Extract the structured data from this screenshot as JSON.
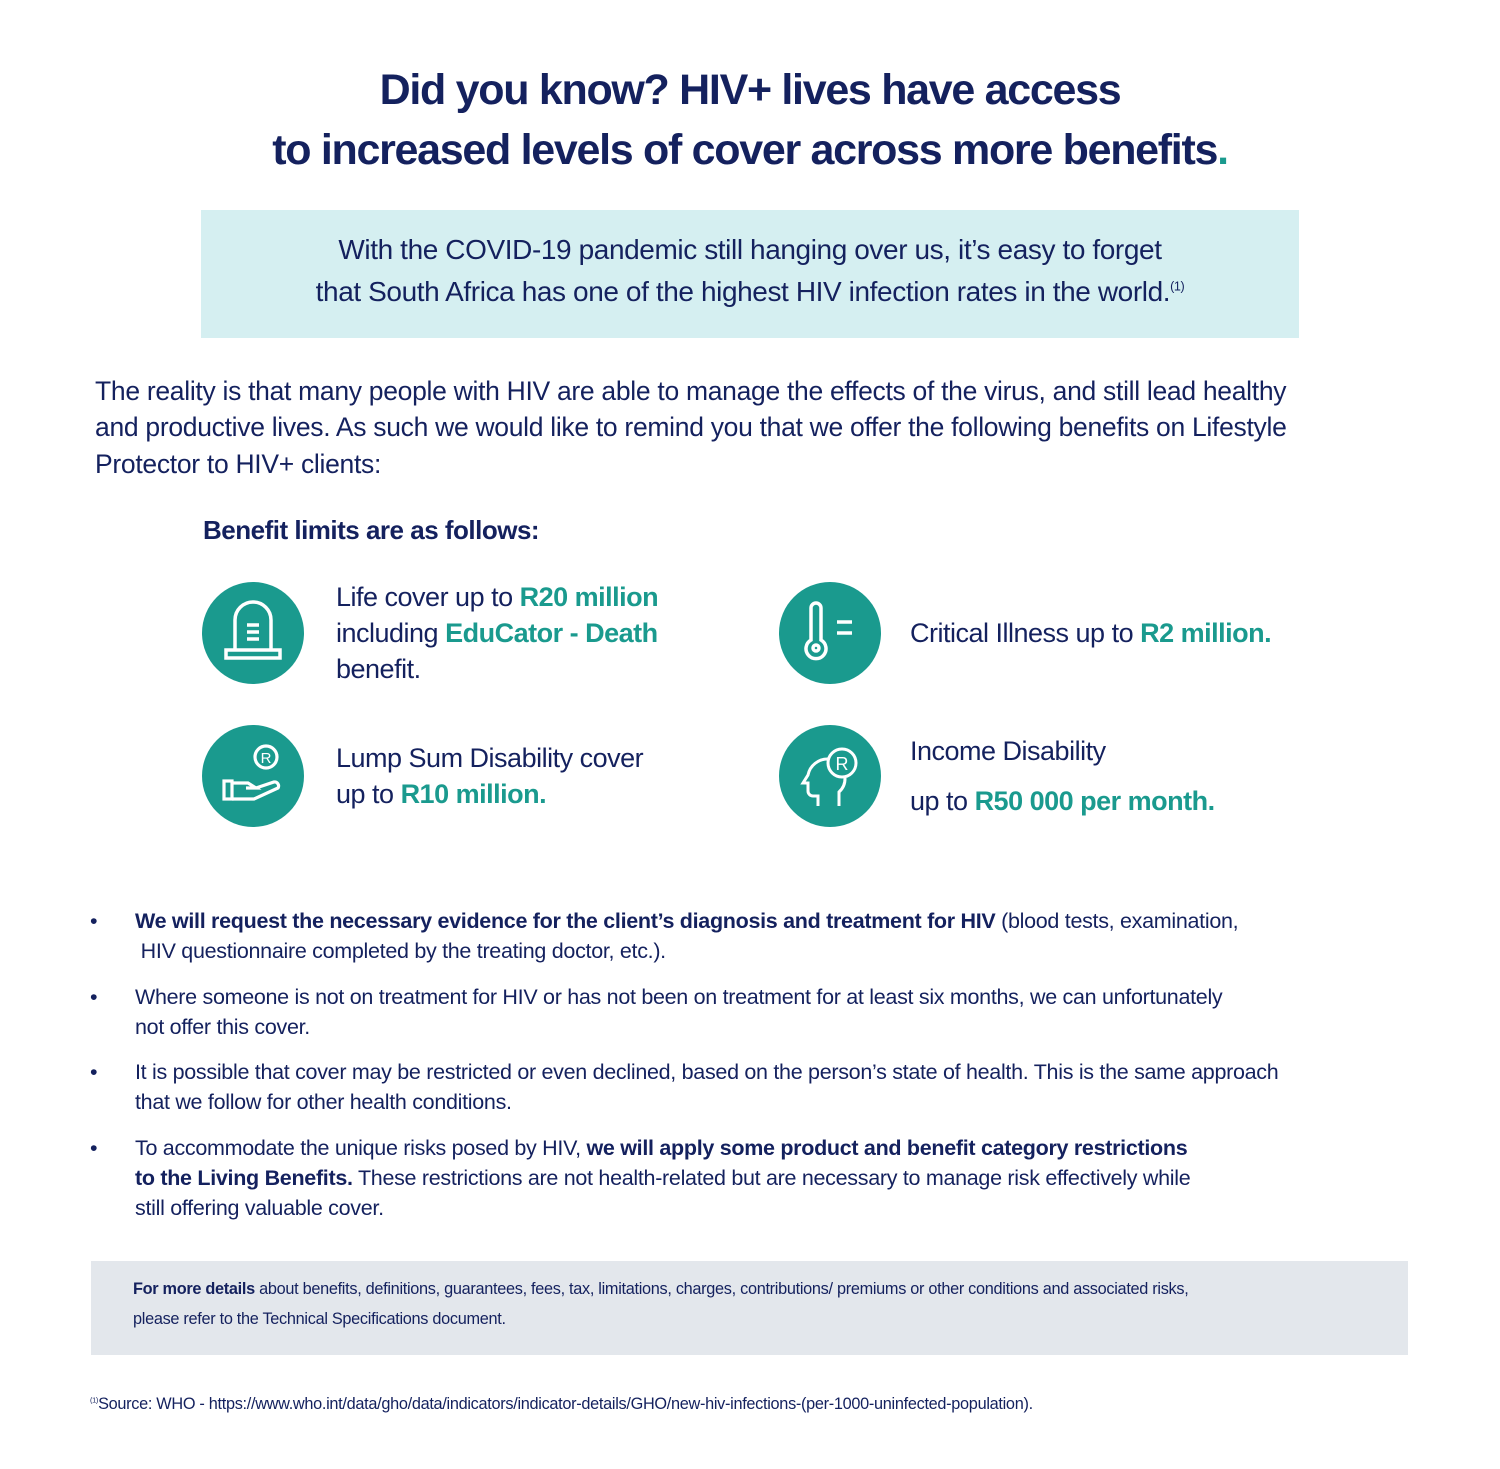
{
  "title": {
    "line1": "Did you know? HIV+ lives have access",
    "line2": "to increased levels of cover across more benefits",
    "period": "."
  },
  "intro": {
    "line1": "With the COVID-19 pandemic still hanging over us, it’s easy to forget",
    "line2": "that South Africa has one of the highest HIV infection rates in the world.",
    "footnote_ref": "(1)"
  },
  "body": {
    "lines": [
      "The reality is that many people with HIV are able to manage the effects of the virus, and still lead healthy",
      "and productive lives. As such we would like to remind you that we offer the following benefits on Lifestyle",
      "Protector to HIV+ clients:"
    ]
  },
  "benefits_heading": "Benefit limits are as follows:",
  "benefits": [
    {
      "icon": "tombstone-icon",
      "l1a": "Life cover up to ",
      "l1b": "R20 million",
      "l2a": "including ",
      "l2b": "EduCator - Death",
      "l3": "benefit."
    },
    {
      "icon": "thermometer-icon",
      "l1a": "Critical Illness up to ",
      "l1b": "R2 million."
    },
    {
      "icon": "hand-rand-coin-icon",
      "l1": "Lump Sum Disability cover",
      "l2a": "up to ",
      "l2b": "R10 million."
    },
    {
      "icon": "head-rand-icon",
      "l1": "Income Disability",
      "l2a": "up to ",
      "l2b": "R50 000 per month."
    }
  ],
  "bullets": [
    {
      "bold1": "We will request the necessary evidence for the client’s diagnosis and treatment for HIV",
      "rest1": " (blood tests, examination,",
      "line2": " HIV questionnaire completed by the treating doctor, etc.)."
    },
    {
      "line1": "Where someone is not on treatment for HIV or has not been on treatment for at least six months, we can unfortunately",
      "line2": "not offer this cover."
    },
    {
      "line1": "It is possible that cover may be restricted or even declined, based on the person’s state of health. This is the same approach",
      "line2": "that we follow for other health conditions."
    },
    {
      "pre1": "To accommodate the unique risks posed by HIV, ",
      "bold1": "we will apply some product and benefit category restrictions",
      "bold2": "to the Living Benefits.",
      "rest2": " These restrictions are not health-related but are necessary to manage risk effectively while",
      "line3": "still offering valuable cover."
    }
  ],
  "bullet_mark": "•",
  "details": {
    "bold": "For more details",
    "rest1": " about benefits, definitions, guarantees, fees, tax, limitations, charges, contributions/ premiums or other conditions and associated risks,",
    "line2": "please refer to the Technical Specifications document."
  },
  "source": {
    "ref": "(1)",
    "text": "Source: WHO - https://www.who.int/data/gho/data/indicators/indicator-details/GHO/new-hiv-infections-(per-1000-uninfected-population)."
  },
  "colors": {
    "navy": "#14215e",
    "teal": "#1a9a8e",
    "intro_bg": "#d5eff1",
    "details_bg": "#e3e7ec"
  }
}
